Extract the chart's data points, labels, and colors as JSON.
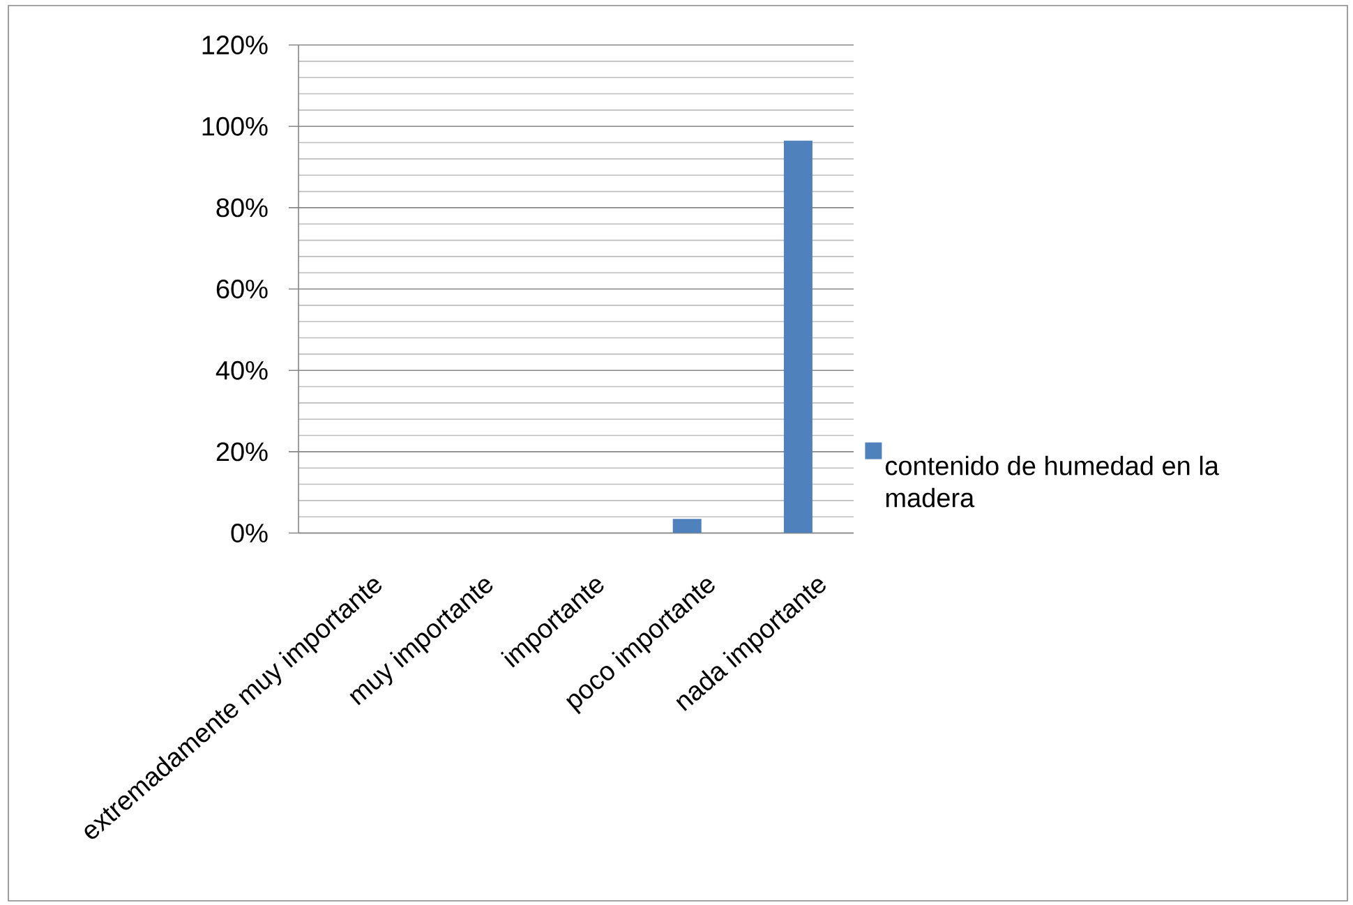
{
  "chart_data": {
    "type": "bar",
    "categories": [
      "extremadamente muy importante",
      "muy importante",
      "importante",
      "poco importante",
      "nada importante"
    ],
    "series": [
      {
        "name": "contenido de humedad en la madera",
        "color": "#4f81bd",
        "values": [
          0,
          0,
          0,
          3.5,
          96.5
        ]
      }
    ],
    "ylim": [
      0,
      120
    ],
    "yticks": [
      {
        "value": 0,
        "label": "0%"
      },
      {
        "value": 4,
        "label": null
      },
      {
        "value": 8,
        "label": null
      },
      {
        "value": 12,
        "label": null
      },
      {
        "value": 16,
        "label": null
      },
      {
        "value": 20,
        "label": "20%"
      },
      {
        "value": 24,
        "label": null
      },
      {
        "value": 28,
        "label": null
      },
      {
        "value": 32,
        "label": null
      },
      {
        "value": 36,
        "label": null
      },
      {
        "value": 40,
        "label": "40%"
      },
      {
        "value": 44,
        "label": null
      },
      {
        "value": 48,
        "label": null
      },
      {
        "value": 52,
        "label": null
      },
      {
        "value": 56,
        "label": null
      },
      {
        "value": 60,
        "label": "60%"
      },
      {
        "value": 64,
        "label": null
      },
      {
        "value": 68,
        "label": null
      },
      {
        "value": 72,
        "label": null
      },
      {
        "value": 76,
        "label": null
      },
      {
        "value": 80,
        "label": "80%"
      },
      {
        "value": 84,
        "label": null
      },
      {
        "value": 88,
        "label": null
      },
      {
        "value": 92,
        "label": null
      },
      {
        "value": 96,
        "label": null
      },
      {
        "value": 100,
        "label": "100%"
      },
      {
        "value": 104,
        "label": null
      },
      {
        "value": 108,
        "label": null
      },
      {
        "value": 112,
        "label": null
      },
      {
        "value": 116,
        "label": null
      },
      {
        "value": 120,
        "label": "120%"
      }
    ],
    "grid": "y",
    "legend": "right"
  }
}
